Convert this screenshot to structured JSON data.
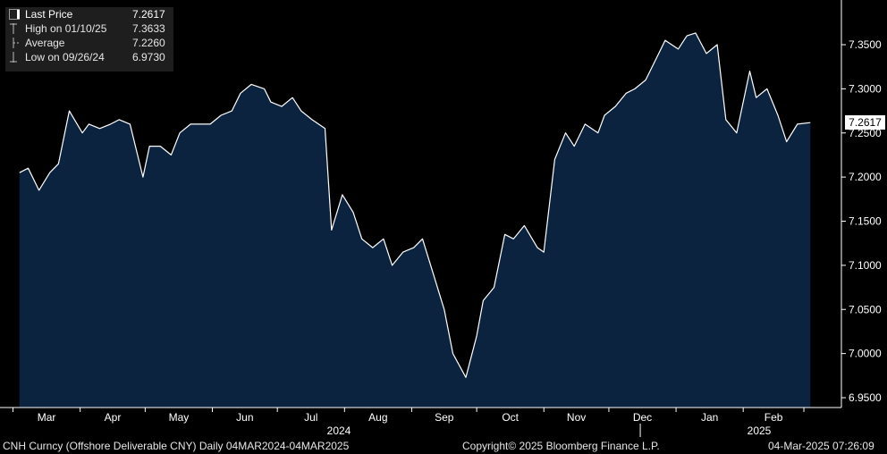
{
  "legend": {
    "last_price": {
      "label": "Last Price",
      "value": "7.2617"
    },
    "high": {
      "label": "High on 01/10/25",
      "value": "7.3633"
    },
    "average": {
      "label": "Average",
      "value": "7.2260"
    },
    "low": {
      "label": "Low on 09/26/24",
      "value": "6.9730"
    }
  },
  "last_price_tag": "7.2617",
  "footer": {
    "ticker": "CNH Curncy (Offshore Deliverable CNY)  Daily 04MAR2024-04MAR2025",
    "copyright": "Copyright© 2025 Bloomberg Finance L.P.",
    "timestamp": "04-Mar-2025 07:26:09"
  },
  "colors": {
    "background": "#000000",
    "area_fill": "#0c2340",
    "line": "#ffffff",
    "axis": "#ffffff"
  },
  "chart_data": {
    "type": "area",
    "ylim": [
      6.93,
      7.4
    ],
    "y_ticks": [
      6.95,
      7.0,
      7.05,
      7.1,
      7.15,
      7.2,
      7.25,
      7.3,
      7.35
    ],
    "y_tick_labels": [
      "6.9500",
      "7.0000",
      "7.0500",
      "7.1000",
      "7.1500",
      "7.2000",
      "7.2500",
      "7.3000",
      "7.3500"
    ],
    "months": [
      "Mar",
      "Apr",
      "May",
      "Jun",
      "Jul",
      "Aug",
      "Sep",
      "Oct",
      "Nov",
      "Dec",
      "Jan",
      "Feb"
    ],
    "years": [
      "2024",
      "2025"
    ],
    "grid": false,
    "legend_position": "top-left",
    "series": [
      {
        "name": "Last Price",
        "x": [
          "2024-03-04",
          "2024-03-08",
          "2024-03-13",
          "2024-03-18",
          "2024-03-22",
          "2024-03-27",
          "2024-04-02",
          "2024-04-05",
          "2024-04-10",
          "2024-04-15",
          "2024-04-19",
          "2024-04-24",
          "2024-04-30",
          "2024-05-03",
          "2024-05-08",
          "2024-05-13",
          "2024-05-17",
          "2024-05-22",
          "2024-05-28",
          "2024-05-31",
          "2024-06-05",
          "2024-06-10",
          "2024-06-14",
          "2024-06-19",
          "2024-06-25",
          "2024-06-28",
          "2024-07-03",
          "2024-07-08",
          "2024-07-12",
          "2024-07-17",
          "2024-07-23",
          "2024-07-26",
          "2024-07-31",
          "2024-08-05",
          "2024-08-09",
          "2024-08-14",
          "2024-08-19",
          "2024-08-23",
          "2024-08-28",
          "2024-09-02",
          "2024-09-06",
          "2024-09-11",
          "2024-09-16",
          "2024-09-20",
          "2024-09-26",
          "2024-10-01",
          "2024-10-04",
          "2024-10-09",
          "2024-10-14",
          "2024-10-18",
          "2024-10-23",
          "2024-10-29",
          "2024-11-01",
          "2024-11-06",
          "2024-11-11",
          "2024-11-15",
          "2024-11-20",
          "2024-11-26",
          "2024-11-29",
          "2024-12-04",
          "2024-12-09",
          "2024-12-13",
          "2024-12-18",
          "2024-12-24",
          "2024-12-27",
          "2025-01-02",
          "2025-01-06",
          "2025-01-10",
          "2025-01-15",
          "2025-01-20",
          "2025-01-24",
          "2025-01-29",
          "2025-02-04",
          "2025-02-07",
          "2025-02-12",
          "2025-02-17",
          "2025-02-21",
          "2025-02-26",
          "2025-03-04"
        ],
        "y": [
          7.205,
          7.21,
          7.185,
          7.205,
          7.215,
          7.275,
          7.25,
          7.26,
          7.255,
          7.26,
          7.265,
          7.26,
          7.2,
          7.235,
          7.235,
          7.225,
          7.25,
          7.26,
          7.26,
          7.26,
          7.27,
          7.275,
          7.295,
          7.305,
          7.3,
          7.285,
          7.28,
          7.29,
          7.275,
          7.265,
          7.255,
          7.14,
          7.18,
          7.16,
          7.13,
          7.12,
          7.13,
          7.1,
          7.115,
          7.12,
          7.13,
          7.09,
          7.05,
          7.0,
          6.973,
          7.02,
          7.06,
          7.075,
          7.135,
          7.13,
          7.145,
          7.12,
          7.115,
          7.22,
          7.25,
          7.235,
          7.26,
          7.25,
          7.27,
          7.28,
          7.295,
          7.3,
          7.31,
          7.34,
          7.355,
          7.345,
          7.36,
          7.3633,
          7.34,
          7.35,
          7.265,
          7.25,
          7.32,
          7.29,
          7.3,
          7.27,
          7.24,
          7.26,
          7.2617
        ]
      }
    ]
  }
}
